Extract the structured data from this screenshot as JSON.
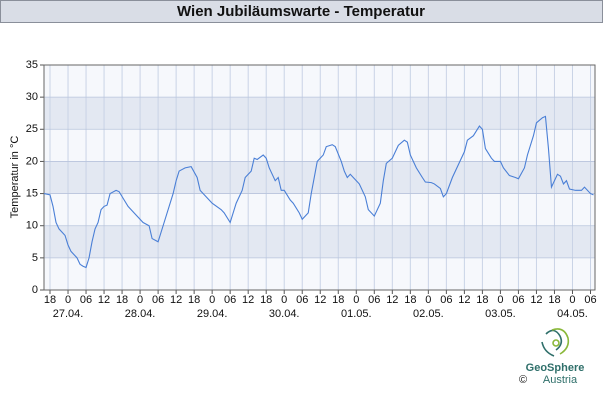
{
  "chart_data": {
    "type": "line",
    "title": "Wien Jubiläumswarte - Temperatur",
    "y_label": "Temperatur in °C",
    "color": "#4a7fd6",
    "grid": true,
    "x": [
      -8,
      -6,
      -5,
      -4,
      -3,
      -1,
      0,
      1,
      3,
      4,
      5,
      6,
      7,
      8,
      9,
      10,
      11,
      12,
      13,
      14,
      16,
      17,
      20,
      22,
      25,
      27,
      28,
      30,
      31,
      33,
      35,
      36,
      37,
      39,
      41,
      43,
      44,
      47,
      48,
      51,
      52,
      54,
      56,
      58,
      59,
      61,
      62,
      63,
      65,
      66,
      67,
      69,
      70,
      71,
      72,
      74,
      75,
      77,
      78,
      80,
      81,
      82,
      83,
      85,
      86,
      88,
      89,
      91,
      92,
      93,
      94,
      95,
      97,
      99,
      100,
      102,
      104,
      105,
      106,
      108,
      109,
      110,
      112,
      113,
      114,
      116,
      118,
      119,
      121,
      122,
      124,
      125,
      126,
      128,
      130,
      132,
      133,
      135,
      137,
      138,
      139,
      141,
      142,
      144,
      145,
      147,
      149,
      150,
      152,
      153,
      155,
      156,
      158,
      159,
      160,
      161,
      163,
      164,
      165,
      166,
      167,
      169,
      171,
      172,
      174,
      175
    ],
    "values": [
      15,
      14.8,
      13,
      10.5,
      9.5,
      8.5,
      7,
      6,
      5,
      4,
      3.7,
      3.5,
      5,
      7.5,
      9.5,
      10.5,
      12.5,
      13,
      13.2,
      15,
      15.5,
      15.3,
      13,
      12,
      10.5,
      10,
      8,
      7.5,
      9,
      12,
      15,
      17,
      18.5,
      19,
      19.2,
      17.5,
      15.5,
      14,
      13.5,
      12.5,
      12,
      10.5,
      13.5,
      15.5,
      17.5,
      18.5,
      20.5,
      20.3,
      21,
      20.5,
      19,
      17,
      17.5,
      15.5,
      15.5,
      14,
      13.5,
      12,
      11,
      12,
      15,
      17.5,
      20,
      21,
      22.3,
      22.6,
      22.3,
      20,
      18.5,
      17.5,
      18,
      17.5,
      16.5,
      14.5,
      12.5,
      11.5,
      13.5,
      17,
      19.7,
      20.5,
      21.5,
      22.5,
      23.3,
      23,
      21,
      19,
      17.5,
      16.8,
      16.7,
      16.5,
      15.8,
      14.5,
      15,
      17.5,
      19.5,
      21.5,
      23.3,
      24,
      25.5,
      25,
      22,
      20.5,
      20,
      20,
      19,
      17.8,
      17.5,
      17.3,
      19,
      21,
      24,
      26,
      26.8,
      27,
      22,
      16,
      18,
      17.7,
      16.5,
      17,
      15.7,
      15.5,
      15.5,
      16,
      15,
      14.8
    ],
    "xlim": [
      -8,
      175.5
    ],
    "xticks": [
      {
        "value": -6,
        "label": "18"
      },
      {
        "value": 0,
        "label": "0"
      },
      {
        "value": 6,
        "label": "06"
      },
      {
        "value": 12,
        "label": "12"
      },
      {
        "value": 18,
        "label": "18"
      },
      {
        "value": 24,
        "label": "0"
      },
      {
        "value": 30,
        "label": "06"
      },
      {
        "value": 36,
        "label": "12"
      },
      {
        "value": 42,
        "label": "18"
      },
      {
        "value": 48,
        "label": "0"
      },
      {
        "value": 54,
        "label": "06"
      },
      {
        "value": 60,
        "label": "12"
      },
      {
        "value": 66,
        "label": "18"
      },
      {
        "value": 72,
        "label": "0"
      },
      {
        "value": 78,
        "label": "06"
      },
      {
        "value": 84,
        "label": "12"
      },
      {
        "value": 90,
        "label": "18"
      },
      {
        "value": 96,
        "label": "0"
      },
      {
        "value": 102,
        "label": "06"
      },
      {
        "value": 108,
        "label": "12"
      },
      {
        "value": 114,
        "label": "18"
      },
      {
        "value": 120,
        "label": "0"
      },
      {
        "value": 126,
        "label": "06"
      },
      {
        "value": 132,
        "label": "12"
      },
      {
        "value": 138,
        "label": "18"
      },
      {
        "value": 144,
        "label": "0"
      },
      {
        "value": 150,
        "label": "06"
      },
      {
        "value": 156,
        "label": "12"
      },
      {
        "value": 162,
        "label": "18"
      },
      {
        "value": 168,
        "label": "0"
      },
      {
        "value": 174,
        "label": "06"
      }
    ],
    "date_ticks": [
      {
        "value": 0,
        "label": "27.04."
      },
      {
        "value": 24,
        "label": "28.04."
      },
      {
        "value": 48,
        "label": "29.04."
      },
      {
        "value": 72,
        "label": "30.04."
      },
      {
        "value": 96,
        "label": "01.05."
      },
      {
        "value": 120,
        "label": "02.05."
      },
      {
        "value": 144,
        "label": "03.05."
      },
      {
        "value": 168,
        "label": "04.05."
      }
    ],
    "ylim": [
      0,
      35
    ],
    "yticks": [
      0,
      5,
      10,
      15,
      20,
      25,
      30,
      35
    ]
  },
  "logo": {
    "name": "GeoSphere",
    "sub": "Austria",
    "copyright": "©"
  }
}
